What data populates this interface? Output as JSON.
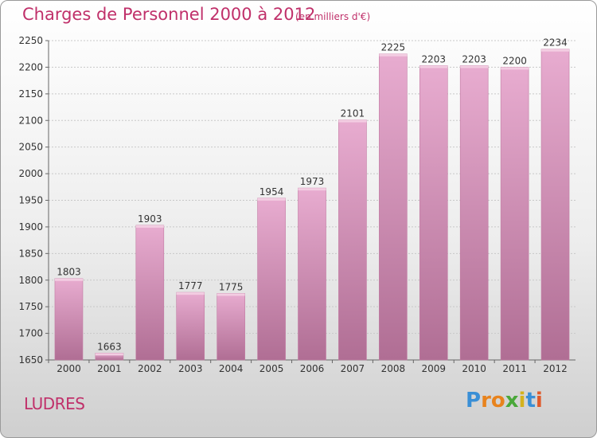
{
  "chart_data": {
    "type": "bar",
    "title": "Charges de Personnel 2000 à 2012",
    "subtitle": "(en milliers d'€)",
    "categories": [
      "2000",
      "2001",
      "2002",
      "2003",
      "2004",
      "2005",
      "2006",
      "2007",
      "2008",
      "2009",
      "2010",
      "2011",
      "2012"
    ],
    "values": [
      1803,
      1663,
      1903,
      1777,
      1775,
      1954,
      1973,
      2101,
      2225,
      2203,
      2203,
      2200,
      2234
    ],
    "ylim": [
      1650,
      2250
    ],
    "yticks": [
      1650,
      1700,
      1750,
      1800,
      1850,
      1900,
      1950,
      2000,
      2050,
      2100,
      2150,
      2200,
      2250
    ],
    "grid": true,
    "bar_color": "#d886b0"
  },
  "location": "LUDRES",
  "brand": {
    "letters": [
      "P",
      "r",
      "o",
      "x",
      "i",
      "t",
      "i"
    ],
    "colors": [
      "#3a8fd6",
      "#e8831d",
      "#e8831d",
      "#4aa83a",
      "#d4b21e",
      "#3a8fd6",
      "#e05a2a"
    ]
  }
}
